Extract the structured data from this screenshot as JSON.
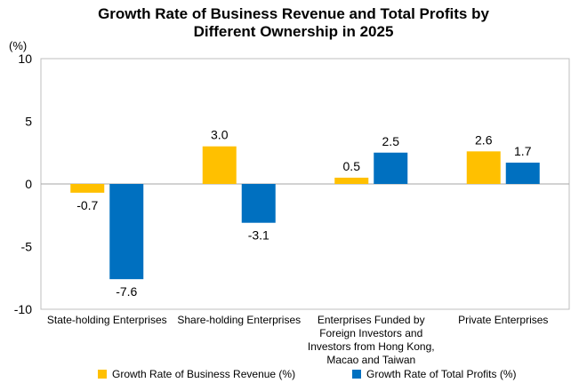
{
  "chart_data": {
    "type": "bar",
    "title_line1": "Growth Rate of Business Revenue and Total Profits by",
    "title_line2": "Different Ownership in 2025",
    "ylabel": "(%)",
    "ylim": [
      -10,
      10
    ],
    "yticks": [
      "10",
      "5",
      "0",
      "-5",
      "-10"
    ],
    "categories": [
      [
        "State-holding Enterprises"
      ],
      [
        "Share-holding Enterprises"
      ],
      [
        "Enterprises Funded by",
        "Foreign Investors and",
        "Investors from Hong Kong,",
        "Macao and Taiwan"
      ],
      [
        "Private Enterprises"
      ]
    ],
    "series": [
      {
        "name": "Growth Rate of Business Revenue (%)",
        "color": "#FFC000",
        "values": [
          -0.7,
          3.0,
          0.5,
          2.6
        ]
      },
      {
        "name": "Growth Rate of Total Profits (%)",
        "color": "#0070C0",
        "values": [
          -7.6,
          -3.1,
          2.5,
          1.7
        ]
      }
    ],
    "grid": false,
    "legend_position": "bottom"
  }
}
